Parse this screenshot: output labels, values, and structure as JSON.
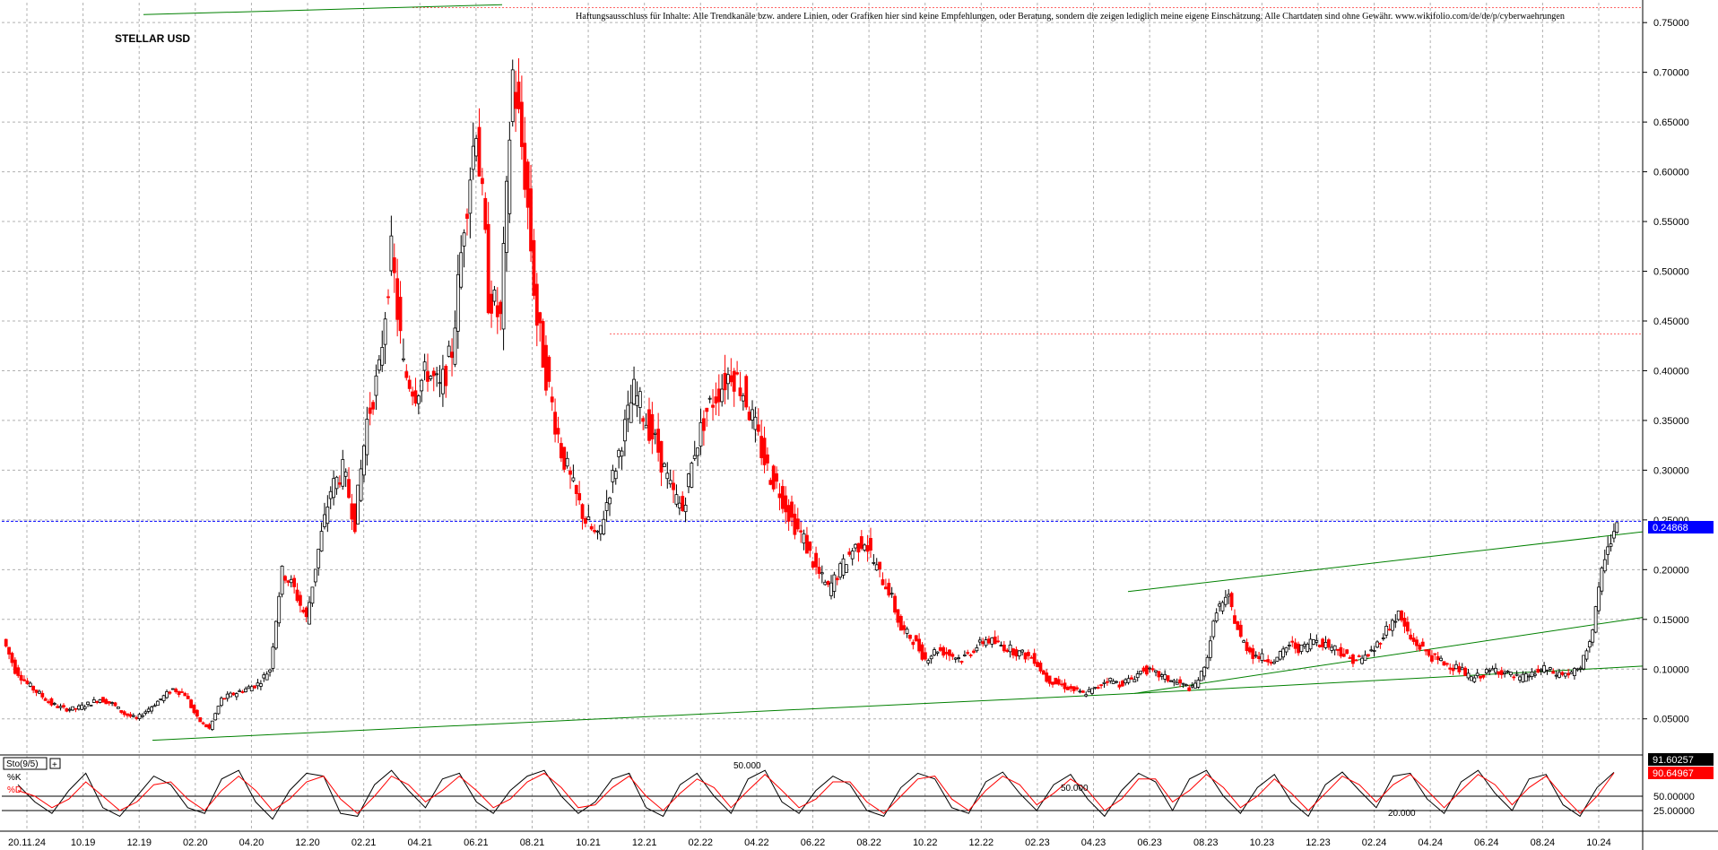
{
  "title": "STELLAR USD",
  "disclaimer": "Haftungsausschluss für Inhalte: Alle Trendkanäle bzw. andere Linien, oder Grafiken hier sind keine Empfehlungen, oder Beratung, sondern die zeigen lediglich meine eigene Einschätzung. Alle Chartdaten sind ohne Gewähr. www.wikifolio.com/de/de/p/cyberwaehrungen",
  "colors": {
    "up": "#000000",
    "down": "#ff0000",
    "trendline": "#008000",
    "current_price_line": "#0000ff",
    "current_price_box": "#0000ff",
    "k_line": "#000000",
    "d_line": "#ff0000",
    "grid": "#b0b0b0"
  },
  "chart_data": [
    {
      "type": "candlestick",
      "title": "STELLAR USD",
      "ylim": [
        0.02,
        0.77
      ],
      "y_ticks": [
        "0.75000",
        "0.70000",
        "0.65000",
        "0.60000",
        "0.55000",
        "0.50000",
        "0.45000",
        "0.40000",
        "0.35000",
        "0.30000",
        "0.25000",
        "0.20000",
        "0.15000",
        "0.10000",
        "0.05000"
      ],
      "x_ticks": [
        "20.11.24",
        "10.19",
        "12.19",
        "02.20",
        "04.20",
        "12.20",
        "02.21",
        "04.21",
        "06.21",
        "08.21",
        "10.21",
        "12.21",
        "02.22",
        "04.22",
        "06.22",
        "08.22",
        "10.22",
        "12.22",
        "02.23",
        "04.23",
        "06.23",
        "08.23",
        "10.23",
        "12.23",
        "02.24",
        "04.24",
        "06.24",
        "08.24",
        "10.24"
      ],
      "current_price": "0.24868",
      "grid": true,
      "series": [
        {
          "values": [
            0.13,
            0.1,
            0.085,
            0.075,
            0.065,
            0.06,
            0.06,
            0.065,
            0.07,
            0.065,
            0.055,
            0.05,
            0.06,
            0.07,
            0.08,
            0.075,
            0.05,
            0.04,
            0.07,
            0.075,
            0.08,
            0.085,
            0.1,
            0.2,
            0.18,
            0.15,
            0.22,
            0.28,
            0.3,
            0.25,
            0.35,
            0.4,
            0.52,
            0.4,
            0.38,
            0.4,
            0.38,
            0.42,
            0.55,
            0.65,
            0.48,
            0.45,
            0.7,
            0.6,
            0.45,
            0.38,
            0.32,
            0.28,
            0.25,
            0.23,
            0.28,
            0.33,
            0.38,
            0.35,
            0.32,
            0.28,
            0.26,
            0.32,
            0.36,
            0.38,
            0.4,
            0.38,
            0.34,
            0.3,
            0.28,
            0.25,
            0.23,
            0.2,
            0.18,
            0.2,
            0.22,
            0.23,
            0.2,
            0.18,
            0.14,
            0.13,
            0.11,
            0.12,
            0.115,
            0.11,
            0.12,
            0.13,
            0.125,
            0.12,
            0.115,
            0.11,
            0.09,
            0.085,
            0.08,
            0.075,
            0.08,
            0.09,
            0.085,
            0.09,
            0.1,
            0.095,
            0.09,
            0.085,
            0.08,
            0.1,
            0.16,
            0.17,
            0.13,
            0.115,
            0.11,
            0.11,
            0.125,
            0.12,
            0.13,
            0.125,
            0.12,
            0.11,
            0.11,
            0.12,
            0.14,
            0.155,
            0.13,
            0.12,
            0.11,
            0.105,
            0.1,
            0.09,
            0.095,
            0.1,
            0.095,
            0.09,
            0.095,
            0.1,
            0.095,
            0.095,
            0.1,
            0.14,
            0.215,
            0.245
          ]
        }
      ]
    },
    {
      "type": "line",
      "indicator": "Sto(9/5)",
      "ylim": [
        0,
        100
      ],
      "y_ticks": [
        "50.00000",
        "25.00000"
      ],
      "k_value": "91.60257",
      "d_value": "90.64967",
      "levels": [
        "50.000",
        "50.000",
        "20.000"
      ],
      "series": [
        {
          "name": "%K",
          "values": [
            70,
            40,
            20,
            60,
            90,
            30,
            15,
            50,
            85,
            70,
            30,
            20,
            80,
            95,
            40,
            10,
            60,
            90,
            85,
            20,
            15,
            70,
            95,
            60,
            30,
            80,
            90,
            40,
            20,
            60,
            85,
            95,
            50,
            20,
            40,
            80,
            90,
            30,
            15,
            70,
            90,
            50,
            20,
            80,
            95,
            40,
            20,
            60,
            85,
            70,
            25,
            15,
            65,
            90,
            80,
            30,
            20,
            75,
            92,
            55,
            25,
            70,
            88,
            45,
            15,
            60,
            90,
            75,
            25,
            80,
            95,
            50,
            20,
            65,
            88,
            40,
            15,
            70,
            92,
            60,
            30,
            85,
            90,
            45,
            20,
            75,
            95,
            55,
            25,
            80,
            88,
            35,
            15,
            65,
            91.6
          ]
        },
        {
          "name": "%D",
          "values": [
            60,
            50,
            30,
            45,
            75,
            50,
            25,
            40,
            70,
            75,
            45,
            25,
            60,
            85,
            60,
            25,
            45,
            75,
            85,
            45,
            20,
            50,
            85,
            70,
            40,
            60,
            85,
            60,
            30,
            45,
            75,
            90,
            65,
            30,
            35,
            65,
            85,
            50,
            25,
            55,
            80,
            65,
            30,
            60,
            88,
            60,
            30,
            45,
            75,
            75,
            40,
            20,
            50,
            80,
            85,
            45,
            25,
            60,
            85,
            70,
            35,
            55,
            80,
            60,
            25,
            45,
            80,
            80,
            40,
            60,
            88,
            65,
            30,
            50,
            80,
            55,
            25,
            55,
            85,
            70,
            40,
            70,
            88,
            60,
            30,
            60,
            88,
            70,
            35,
            65,
            85,
            50,
            20,
            50,
            90.6
          ]
        }
      ]
    }
  ]
}
